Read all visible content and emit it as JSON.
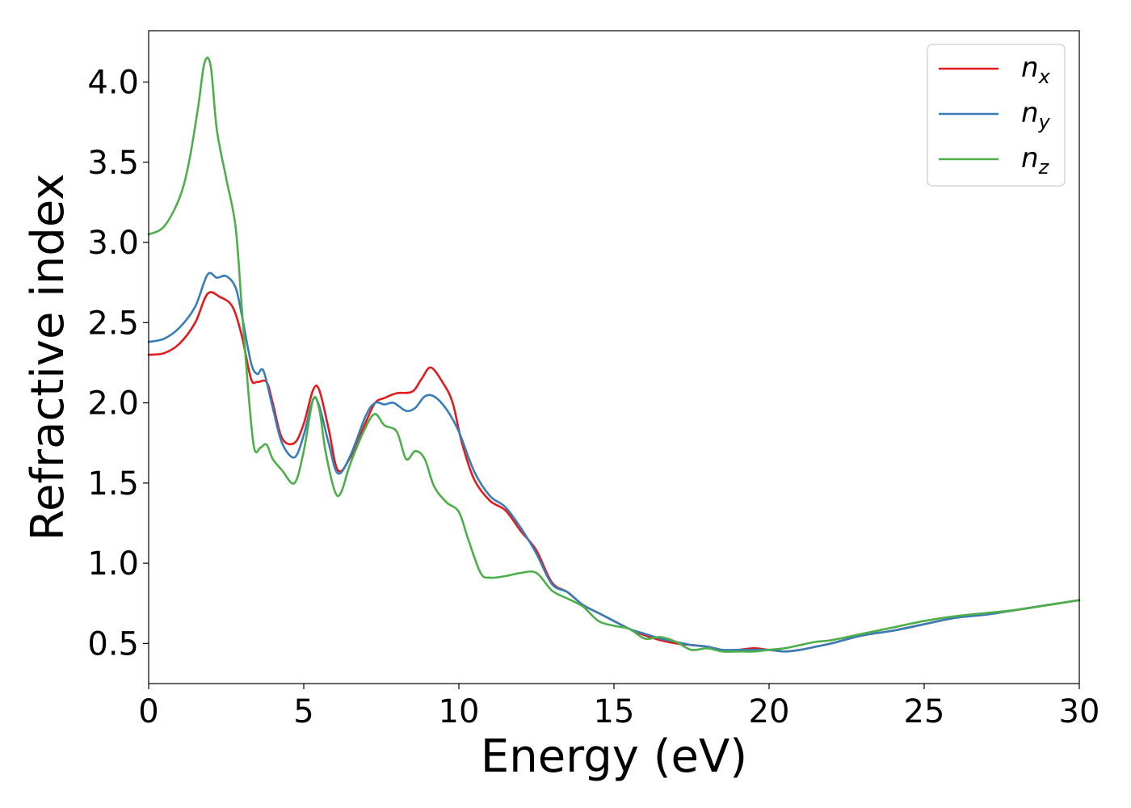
{
  "chart_data": {
    "type": "line",
    "xlabel": "Energy (eV)",
    "ylabel": "Refractive index",
    "xlim": [
      0,
      30
    ],
    "ylim": [
      0.25,
      4.32
    ],
    "xticks": [
      0,
      5,
      10,
      15,
      20,
      25,
      30
    ],
    "xtick_labels": [
      "0",
      "5",
      "10",
      "15",
      "20",
      "25",
      "30"
    ],
    "yticks": [
      0.5,
      1.0,
      1.5,
      2.0,
      2.5,
      3.0,
      3.5,
      4.0
    ],
    "ytick_labels": [
      "0.5",
      "1.0",
      "1.5",
      "2.0",
      "2.5",
      "3.0",
      "3.5",
      "4.0"
    ],
    "grid": false,
    "legend_position": "top-right",
    "series": [
      {
        "name": "n",
        "subscript": "x",
        "color": "#e41a1c",
        "x": [
          0,
          0.5,
          1.0,
          1.5,
          1.9,
          2.3,
          2.7,
          3.0,
          3.3,
          3.5,
          3.8,
          4.0,
          4.3,
          4.7,
          5.0,
          5.3,
          5.5,
          5.8,
          6.1,
          6.5,
          7.0,
          7.3,
          7.6,
          8.0,
          8.5,
          8.8,
          9.1,
          9.5,
          9.8,
          10.1,
          10.5,
          11.0,
          11.5,
          12.0,
          12.5,
          13.0,
          13.5,
          14.0,
          14.5,
          15.0,
          15.5,
          16.0,
          16.5,
          17.0,
          17.5,
          18.0,
          18.5,
          19.0,
          19.5,
          20.0,
          20.5,
          21.0,
          21.5,
          22.0,
          23.0,
          24.0,
          25.0,
          26.0,
          27.0,
          28.0,
          29.0,
          30.0
        ],
        "y": [
          2.3,
          2.31,
          2.37,
          2.5,
          2.68,
          2.66,
          2.6,
          2.42,
          2.15,
          2.13,
          2.13,
          2.0,
          1.78,
          1.75,
          1.87,
          2.08,
          2.08,
          1.84,
          1.58,
          1.66,
          1.88,
          2.0,
          2.03,
          2.06,
          2.07,
          2.15,
          2.22,
          2.12,
          2.0,
          1.75,
          1.52,
          1.39,
          1.33,
          1.2,
          1.08,
          0.88,
          0.82,
          0.74,
          0.69,
          0.64,
          0.59,
          0.55,
          0.52,
          0.5,
          0.49,
          0.48,
          0.46,
          0.46,
          0.47,
          0.46,
          0.45,
          0.46,
          0.48,
          0.5,
          0.55,
          0.58,
          0.62,
          0.66,
          0.68,
          0.71,
          0.74,
          0.77
        ]
      },
      {
        "name": "n",
        "subscript": "y",
        "color": "#377eb8",
        "x": [
          0,
          0.5,
          1.0,
          1.5,
          1.9,
          2.2,
          2.5,
          2.8,
          3.0,
          3.3,
          3.5,
          3.7,
          4.0,
          4.3,
          4.7,
          5.0,
          5.3,
          5.5,
          5.8,
          6.1,
          6.5,
          7.0,
          7.3,
          7.6,
          7.9,
          8.3,
          8.6,
          8.9,
          9.2,
          9.6,
          10.0,
          10.5,
          11.0,
          11.5,
          12.0,
          12.5,
          13.0,
          13.5,
          14.0,
          14.5,
          15.0,
          15.5,
          16.0,
          16.5,
          17.0,
          17.5,
          18.0,
          18.5,
          19.0,
          19.5,
          20.0,
          20.5,
          21.0,
          21.5,
          22.0,
          23.0,
          24.0,
          25.0,
          26.0,
          27.0,
          28.0,
          29.0,
          30.0
        ],
        "y": [
          2.38,
          2.4,
          2.47,
          2.6,
          2.8,
          2.78,
          2.79,
          2.72,
          2.55,
          2.25,
          2.18,
          2.2,
          1.97,
          1.75,
          1.66,
          1.8,
          2.02,
          1.98,
          1.75,
          1.56,
          1.67,
          1.92,
          2.0,
          1.99,
          2.0,
          1.95,
          1.97,
          2.04,
          2.04,
          1.96,
          1.82,
          1.57,
          1.42,
          1.35,
          1.22,
          1.06,
          0.87,
          0.82,
          0.74,
          0.69,
          0.64,
          0.59,
          0.56,
          0.53,
          0.51,
          0.49,
          0.48,
          0.46,
          0.46,
          0.46,
          0.46,
          0.45,
          0.46,
          0.48,
          0.5,
          0.55,
          0.58,
          0.62,
          0.66,
          0.68,
          0.71,
          0.74,
          0.77
        ]
      },
      {
        "name": "n",
        "subscript": "z",
        "color": "#4daf4a",
        "x": [
          0,
          0.5,
          1.0,
          1.3,
          1.6,
          1.8,
          2.0,
          2.2,
          2.5,
          2.8,
          3.0,
          3.2,
          3.4,
          3.6,
          3.8,
          4.0,
          4.3,
          4.7,
          5.0,
          5.3,
          5.5,
          5.7,
          6.0,
          6.2,
          6.5,
          7.0,
          7.3,
          7.6,
          8.0,
          8.3,
          8.6,
          8.9,
          9.2,
          9.6,
          10.0,
          10.3,
          10.7,
          11.0,
          11.5,
          12.0,
          12.5,
          13.0,
          13.5,
          14.0,
          14.5,
          15.0,
          15.5,
          16.0,
          16.5,
          17.0,
          17.5,
          18.0,
          18.5,
          19.0,
          19.5,
          20.0,
          20.5,
          21.0,
          21.5,
          22.0,
          23.0,
          24.0,
          25.0,
          26.0,
          27.0,
          28.0,
          29.0,
          30.0
        ],
        "y": [
          3.05,
          3.1,
          3.28,
          3.5,
          3.85,
          4.12,
          4.1,
          3.7,
          3.4,
          3.1,
          2.6,
          2.1,
          1.72,
          1.72,
          1.74,
          1.65,
          1.58,
          1.5,
          1.7,
          2.02,
          1.96,
          1.7,
          1.45,
          1.44,
          1.62,
          1.85,
          1.93,
          1.86,
          1.82,
          1.65,
          1.7,
          1.65,
          1.48,
          1.38,
          1.32,
          1.15,
          0.94,
          0.91,
          0.92,
          0.94,
          0.94,
          0.83,
          0.78,
          0.73,
          0.64,
          0.61,
          0.59,
          0.53,
          0.54,
          0.51,
          0.46,
          0.47,
          0.45,
          0.45,
          0.45,
          0.46,
          0.47,
          0.49,
          0.51,
          0.52,
          0.56,
          0.6,
          0.64,
          0.67,
          0.69,
          0.71,
          0.74,
          0.77
        ]
      }
    ]
  }
}
